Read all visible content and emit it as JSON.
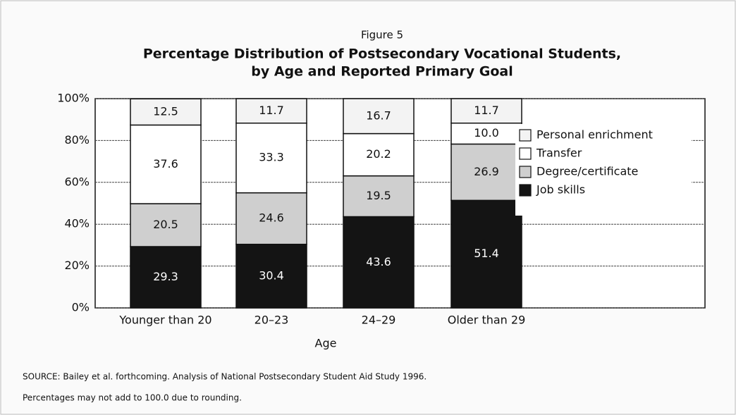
{
  "chart_data": {
    "type": "stacked_bar",
    "figure_label": "Figure 5",
    "title": [
      "Percentage Distribution of Postsecondary Vocational Students,",
      "by Age and Reported Primary Goal"
    ],
    "x_label": "Age",
    "categories": [
      "Younger than 20",
      "20–23",
      "24–29",
      "Older than 29"
    ],
    "series": [
      {
        "name": "Job skills",
        "color": "#141414",
        "values": [
          29.3,
          30.4,
          43.6,
          51.4
        ],
        "value_labels": [
          "29.3",
          "30.4",
          "43.6",
          "51.4"
        ]
      },
      {
        "name": "Degree/certificate",
        "color": "#cfcfcf",
        "values": [
          20.5,
          24.6,
          19.5,
          26.9
        ],
        "value_labels": [
          "20.5",
          "24.6",
          "19.5",
          "26.9"
        ]
      },
      {
        "name": "Transfer",
        "color": "#ffffff",
        "values": [
          37.6,
          33.3,
          20.2,
          10.0
        ],
        "value_labels": [
          "37.6",
          "33.3",
          "20.2",
          "10.0"
        ]
      },
      {
        "name": "Personal enrichment",
        "color": "#f3f3f3",
        "values": [
          12.5,
          11.7,
          16.7,
          11.7
        ],
        "value_labels": [
          "12.5",
          "11.7",
          "16.7",
          "11.7"
        ]
      }
    ],
    "ylim": [
      0,
      100
    ],
    "yticks": [
      {
        "value": 0,
        "label": "0%"
      },
      {
        "value": 20,
        "label": "20%"
      },
      {
        "value": 40,
        "label": "40%"
      },
      {
        "value": 60,
        "label": "60%"
      },
      {
        "value": 80,
        "label": "80%"
      },
      {
        "value": 100,
        "label": "100%"
      }
    ],
    "grid": true,
    "legend_position": "right",
    "notes": [
      "SOURCE: Bailey et al. forthcoming. Analysis of National Postsecondary Student Aid Study 1996.",
      "Percentages may not add to 100.0 due to rounding."
    ]
  }
}
